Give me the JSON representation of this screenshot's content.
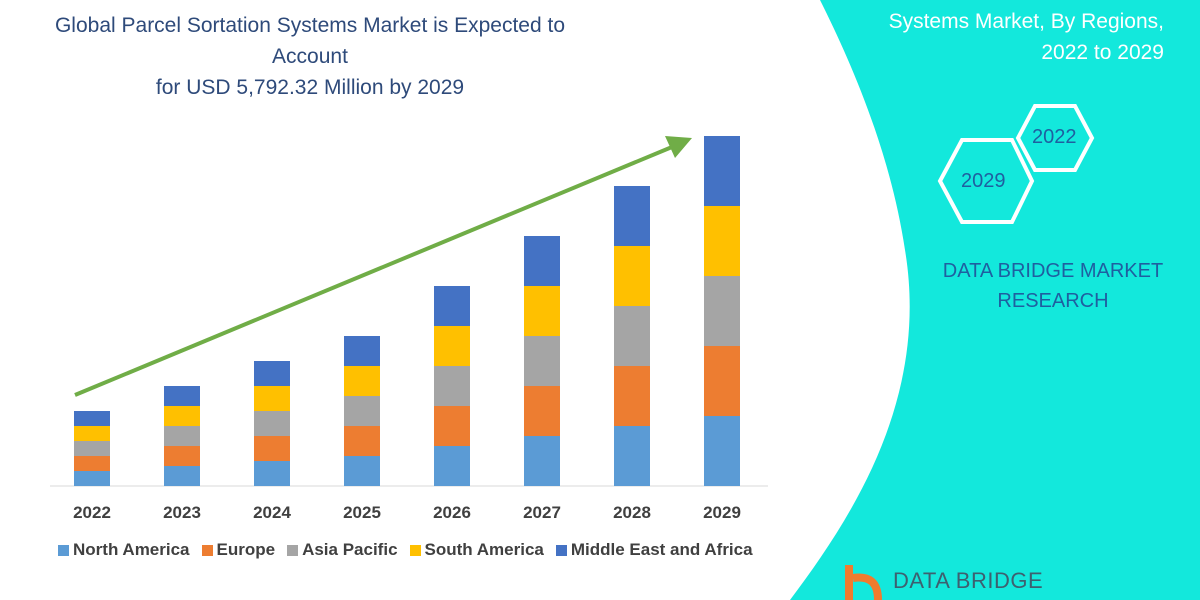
{
  "chart_data": {
    "type": "bar",
    "stacked": true,
    "title": "Global Parcel Sortation Systems Market is Expected to Account for USD 5,792.32 Million by 2029",
    "title_lines": [
      "Global Parcel Sortation Systems Market is Expected to Account",
      "for USD 5,792.32 Million by 2029"
    ],
    "categories": [
      "2022",
      "2023",
      "2024",
      "2025",
      "2026",
      "2027",
      "2028",
      "2029"
    ],
    "series": [
      {
        "name": "North America",
        "color": "#5b9bd5",
        "values": [
          15,
          20,
          25,
          30,
          40,
          50,
          60,
          70
        ]
      },
      {
        "name": "Europe",
        "color": "#ed7d31",
        "values": [
          15,
          20,
          25,
          30,
          40,
          50,
          60,
          70
        ]
      },
      {
        "name": "Asia Pacific",
        "color": "#a5a5a5",
        "values": [
          15,
          20,
          25,
          30,
          40,
          50,
          60,
          70
        ]
      },
      {
        "name": "South America",
        "color": "#ffc000",
        "values": [
          15,
          20,
          25,
          30,
          40,
          50,
          60,
          70
        ]
      },
      {
        "name": "Middle East and Africa",
        "color": "#4472c4",
        "values": [
          15,
          20,
          25,
          30,
          40,
          50,
          60,
          70
        ]
      }
    ],
    "xlabel": "",
    "ylabel": "",
    "y_axis_shown": false,
    "grid": false,
    "legend_placement": "bottom",
    "trend_arrow_color": "#70ad47"
  },
  "side_panel": {
    "title_lines": [
      "Systems Market, By Regions,",
      "2022 to 2029"
    ],
    "hex_labels": [
      "2022",
      "2029"
    ],
    "brand_lines": [
      "DATA BRIDGE MARKET",
      "RESEARCH"
    ],
    "panel_color": "#13e8dc"
  },
  "logo": {
    "text": "DATA BRIDGE"
  }
}
